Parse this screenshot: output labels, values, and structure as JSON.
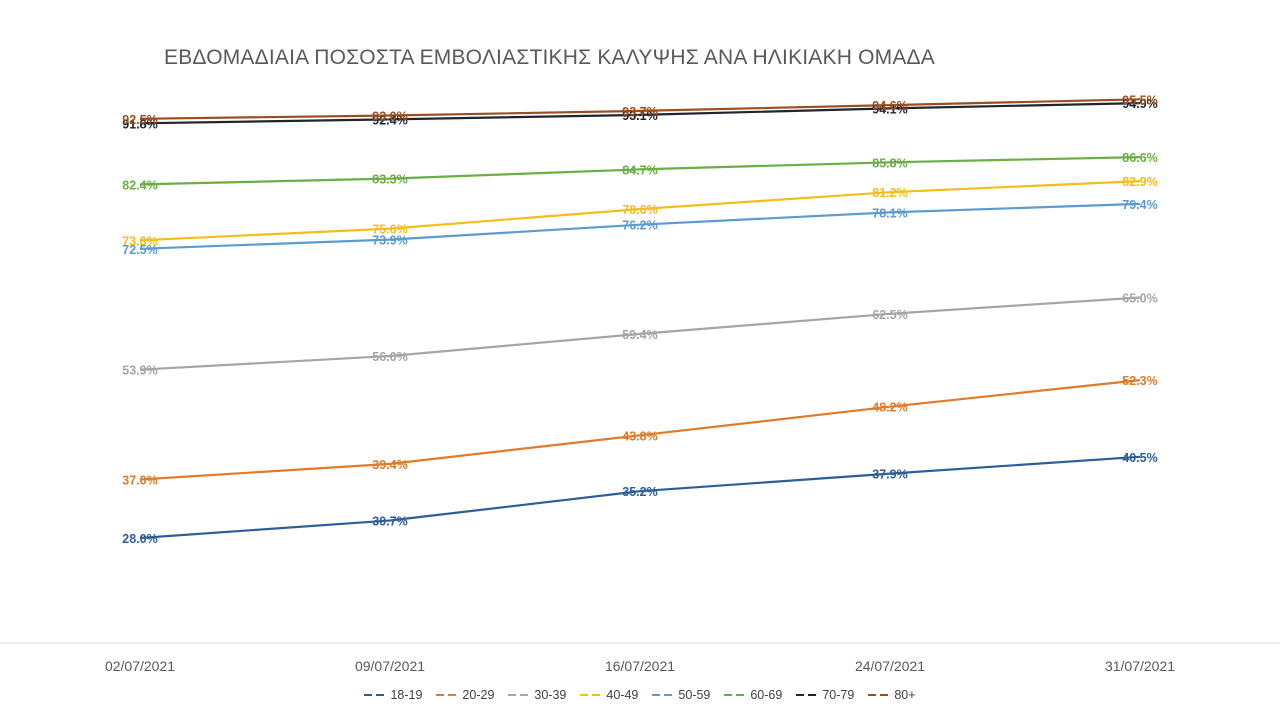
{
  "chart_data": {
    "type": "line",
    "title": "ΕΒΔΟΜΑΔΙΑΙΑ ΠΟΣΟΣΤΑ ΕΜΒΟΛΙΑΣΤΙΚΗΣ ΚΑΛΥΨΗΣ ΑΝΑ ΗΛΙΚΙΑΚΗ ΟΜΑΔΑ",
    "xlabel": "",
    "ylabel": "",
    "categories": [
      "02/07/2021",
      "09/07/2021",
      "16/07/2021",
      "24/07/2021",
      "31/07/2021"
    ],
    "ylim": [
      20,
      100
    ],
    "grid": false,
    "legend_position": "bottom",
    "series": [
      {
        "name": "18-19",
        "color": "#2E5E9A",
        "values": [
          28.0,
          30.7,
          35.2,
          37.9,
          40.5
        ]
      },
      {
        "name": "20-29",
        "color": "#E07B2A",
        "values": [
          37.0,
          39.4,
          43.8,
          48.2,
          52.3
        ]
      },
      {
        "name": "30-39",
        "color": "#A5A5A5",
        "values": [
          53.9,
          56.0,
          59.4,
          62.5,
          65.0
        ]
      },
      {
        "name": "40-49",
        "color": "#F4BE1A",
        "values": [
          73.8,
          75.6,
          78.6,
          81.2,
          82.9
        ]
      },
      {
        "name": "50-59",
        "color": "#5C9BD1",
        "values": [
          72.5,
          73.9,
          76.2,
          78.1,
          79.4
        ]
      },
      {
        "name": "60-69",
        "color": "#6AAE45",
        "values": [
          82.4,
          83.3,
          84.7,
          85.8,
          86.6
        ]
      },
      {
        "name": "70-79",
        "color": "#1F2430",
        "values": [
          91.8,
          92.4,
          93.1,
          94.1,
          94.9
        ]
      },
      {
        "name": "80+",
        "color": "#9C4E1F",
        "values": [
          92.5,
          93.0,
          93.7,
          94.6,
          95.5
        ]
      }
    ],
    "data_labels": [
      [
        "28.0%",
        "30.7%",
        "35.2%",
        "37.9%",
        "40.5%"
      ],
      [
        "37.0%",
        "39.4%",
        "43.8%",
        "48.2%",
        "52.3%"
      ],
      [
        "53.9%",
        "56.0%",
        "59.4%",
        "62.5%",
        "65.0%"
      ],
      [
        "73.8%",
        "75.6%",
        "78.6%",
        "81.2%",
        "82.9%"
      ],
      [
        "72.5%",
        "73.9%",
        "76.2%",
        "78.1%",
        "79.4%"
      ],
      [
        "82.4%",
        "83.3%",
        "84.7%",
        "85.8%",
        "86.6%"
      ],
      [
        "91.8%",
        "92.4%",
        "93.1%",
        "94.1%",
        "94.9%"
      ],
      [
        "92.5%",
        "93.0%",
        "93.7%",
        "94.6%",
        "95.5%"
      ]
    ]
  }
}
